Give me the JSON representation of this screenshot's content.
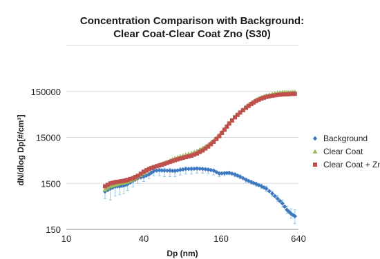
{
  "chart_data": {
    "type": "scatter",
    "title_lines": [
      "Concentration Comparison with Background:",
      "Clear Coat-Clear Coat Zno (S30)"
    ],
    "xlabel": "Dp (nm)",
    "ylabel": "dN/dlog Dp[#/cm³]",
    "x_scale": "log2",
    "y_scale": "log10",
    "xlim": [
      10,
      640
    ],
    "ylim": [
      150,
      1500000
    ],
    "x_ticks": [
      10,
      40,
      160,
      640
    ],
    "x_tick_labels": [
      "10",
      "40",
      "160",
      "640"
    ],
    "y_ticks": [
      150,
      1500,
      15000,
      150000
    ],
    "y_tick_labels": [
      "150",
      "1500",
      "15000",
      "150000"
    ],
    "grid": "horizontal",
    "legend_position": "right",
    "series": [
      {
        "name": "Background",
        "marker": "diamond",
        "color": "#3f78c0",
        "error_color": "#8ec9ea",
        "points": [
          [
            20,
            1000
          ],
          [
            22,
            1150
          ],
          [
            24,
            1280
          ],
          [
            26,
            1300
          ],
          [
            28,
            1350
          ],
          [
            30,
            1450
          ],
          [
            33,
            1700
          ],
          [
            36,
            1950
          ],
          [
            40,
            2100
          ],
          [
            44,
            2350
          ],
          [
            48,
            2800
          ],
          [
            53,
            2900
          ],
          [
            58,
            2850
          ],
          [
            64,
            2850
          ],
          [
            70,
            2800
          ],
          [
            77,
            2950
          ],
          [
            85,
            3100
          ],
          [
            94,
            3100
          ],
          [
            104,
            3150
          ],
          [
            115,
            3100
          ],
          [
            127,
            3000
          ],
          [
            140,
            2850
          ],
          [
            155,
            2450
          ],
          [
            170,
            2500
          ],
          [
            185,
            2550
          ],
          [
            205,
            2350
          ],
          [
            225,
            2100
          ],
          [
            250,
            1800
          ],
          [
            275,
            1600
          ],
          [
            300,
            1450
          ],
          [
            330,
            1300
          ],
          [
            360,
            1150
          ],
          [
            400,
            900
          ],
          [
            440,
            700
          ],
          [
            480,
            550
          ],
          [
            520,
            400
          ],
          [
            560,
            330
          ],
          [
            600,
            290
          ]
        ],
        "error_bars": [
          [
            20,
            700,
            1300
          ],
          [
            22,
            650,
            1400
          ],
          [
            24,
            800,
            1600
          ],
          [
            26,
            850,
            1700
          ],
          [
            28,
            900,
            1800
          ],
          [
            30,
            1050,
            1900
          ],
          [
            33,
            1250,
            2100
          ],
          [
            36,
            1500,
            2300
          ],
          [
            40,
            1650,
            2500
          ],
          [
            44,
            1900,
            2700
          ],
          [
            48,
            2200,
            3100
          ],
          [
            53,
            2200,
            3200
          ],
          [
            58,
            2100,
            3200
          ],
          [
            64,
            2100,
            3200
          ],
          [
            70,
            2100,
            3100
          ],
          [
            77,
            2300,
            3300
          ],
          [
            85,
            2400,
            3400
          ],
          [
            94,
            2400,
            3400
          ],
          [
            104,
            2500,
            3400
          ],
          [
            115,
            2500,
            3300
          ],
          [
            127,
            2400,
            3200
          ],
          [
            140,
            2300,
            3000
          ],
          [
            155,
            2100,
            2700
          ],
          [
            170,
            2200,
            2700
          ],
          [
            185,
            2300,
            2700
          ],
          [
            205,
            2100,
            2500
          ],
          [
            225,
            1900,
            2300
          ],
          [
            250,
            1600,
            1950
          ],
          [
            275,
            1450,
            1750
          ],
          [
            300,
            1300,
            1600
          ],
          [
            330,
            1150,
            1450
          ],
          [
            360,
            1000,
            1300
          ],
          [
            400,
            780,
            1020
          ],
          [
            440,
            600,
            820
          ],
          [
            480,
            460,
            650
          ],
          [
            520,
            330,
            480
          ],
          [
            560,
            260,
            420
          ],
          [
            600,
            200,
            400
          ]
        ]
      },
      {
        "name": "Clear Coat",
        "marker": "triangle",
        "color": "#9bbb59",
        "points": [
          [
            20,
            1100
          ],
          [
            22,
            1300
          ],
          [
            24,
            1400
          ],
          [
            26,
            1500
          ],
          [
            28,
            1550
          ],
          [
            30,
            1650
          ],
          [
            33,
            1800
          ],
          [
            36,
            2100
          ],
          [
            40,
            2500
          ],
          [
            44,
            3000
          ],
          [
            48,
            3400
          ],
          [
            53,
            3800
          ],
          [
            58,
            4200
          ],
          [
            64,
            4700
          ],
          [
            70,
            5300
          ],
          [
            77,
            5800
          ],
          [
            85,
            6300
          ],
          [
            94,
            6800
          ],
          [
            104,
            7600
          ],
          [
            115,
            8800
          ],
          [
            127,
            10500
          ],
          [
            140,
            13000
          ],
          [
            155,
            17000
          ],
          [
            170,
            23000
          ],
          [
            185,
            31000
          ],
          [
            205,
            42000
          ],
          [
            225,
            54000
          ],
          [
            250,
            70000
          ],
          [
            275,
            85000
          ],
          [
            300,
            100000
          ],
          [
            330,
            113000
          ],
          [
            360,
            123000
          ],
          [
            400,
            133000
          ],
          [
            440,
            140000
          ],
          [
            480,
            144000
          ],
          [
            520,
            145000
          ],
          [
            560,
            145000
          ],
          [
            600,
            146000
          ]
        ]
      },
      {
        "name": "Clear Coat + ZnO",
        "marker": "square",
        "color": "#c0504d",
        "points": [
          [
            20,
            1300
          ],
          [
            22,
            1500
          ],
          [
            24,
            1600
          ],
          [
            26,
            1650
          ],
          [
            28,
            1700
          ],
          [
            30,
            1800
          ],
          [
            33,
            1950
          ],
          [
            36,
            2200
          ],
          [
            40,
            2700
          ],
          [
            44,
            3100
          ],
          [
            48,
            3400
          ],
          [
            53,
            3700
          ],
          [
            58,
            4000
          ],
          [
            64,
            4400
          ],
          [
            70,
            4800
          ],
          [
            77,
            5200
          ],
          [
            85,
            5600
          ],
          [
            94,
            6000
          ],
          [
            104,
            6700
          ],
          [
            115,
            7800
          ],
          [
            127,
            9500
          ],
          [
            140,
            12000
          ],
          [
            155,
            16000
          ],
          [
            170,
            22000
          ],
          [
            185,
            30000
          ],
          [
            205,
            41000
          ],
          [
            225,
            52000
          ],
          [
            250,
            66000
          ],
          [
            275,
            80000
          ],
          [
            300,
            93000
          ],
          [
            330,
            105000
          ],
          [
            360,
            114000
          ],
          [
            400,
            121000
          ],
          [
            440,
            126000
          ],
          [
            480,
            129000
          ],
          [
            520,
            130000
          ],
          [
            560,
            132000
          ],
          [
            600,
            133000
          ]
        ]
      }
    ]
  }
}
